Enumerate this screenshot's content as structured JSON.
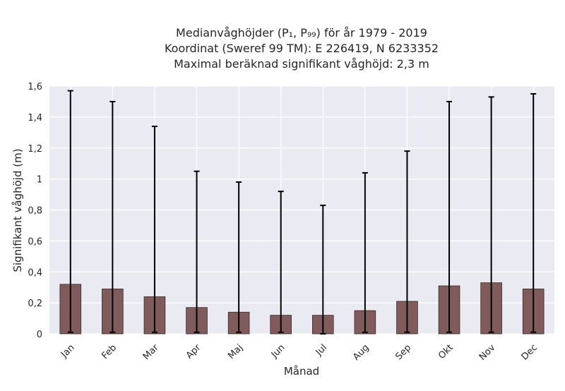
{
  "chart_data": {
    "type": "bar",
    "title_lines": [
      "Medianvåghöjder (P₁, P₉₉) för år 1979 - 2019",
      "Koordinat (Sweref 99 TM): E 226419, N 6233352",
      "Maximal beräknad signifikant våghöjd: 2,3 m"
    ],
    "xlabel": "Månad",
    "ylabel": "Signifikant våghöjd (m)",
    "categories": [
      "Jan",
      "Feb",
      "Mar",
      "Apr",
      "Maj",
      "Jun",
      "Jul",
      "Aug",
      "Sep",
      "Okt",
      "Nov",
      "Dec"
    ],
    "values": [
      0.32,
      0.29,
      0.24,
      0.17,
      0.14,
      0.12,
      0.12,
      0.15,
      0.21,
      0.31,
      0.33,
      0.29
    ],
    "err_low": [
      0.01,
      0.01,
      0.01,
      0.01,
      0.01,
      0.01,
      0.0,
      0.01,
      0.01,
      0.01,
      0.01,
      0.01
    ],
    "err_high": [
      1.57,
      1.5,
      1.34,
      1.05,
      0.98,
      0.92,
      0.83,
      1.04,
      1.18,
      1.5,
      1.53,
      1.55
    ],
    "ylim": [
      0,
      1.6
    ],
    "y_ticks": [
      0,
      0.2,
      0.4,
      0.6,
      0.8,
      1,
      1.2,
      1.4,
      1.6
    ],
    "y_tick_labels": [
      "0",
      "0,2",
      "0,4",
      "0,6",
      "0,8",
      "1",
      "1,2",
      "1,4",
      "1,6"
    ],
    "grid": true,
    "colors": {
      "bar": "#7f5b5b",
      "bar_edge": "#3a2a2a",
      "error": "#000000",
      "plot_bg": "#eaeaf2",
      "grid": "#ffffff"
    }
  }
}
